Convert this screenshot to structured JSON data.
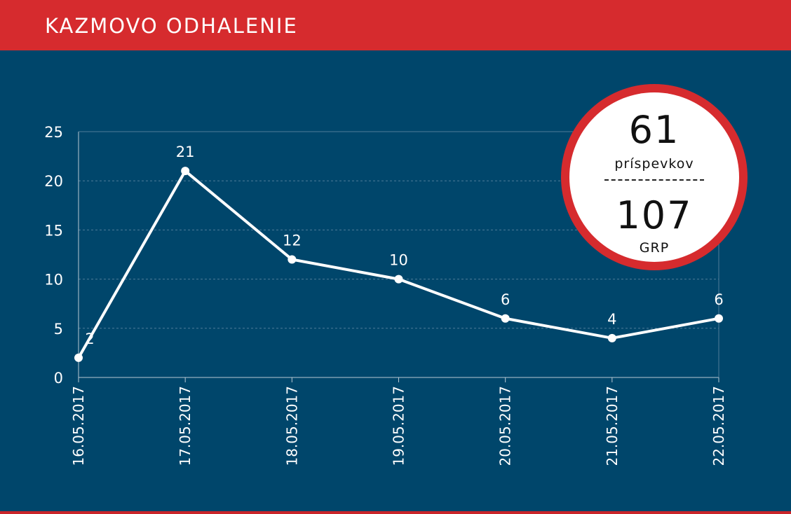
{
  "header": {
    "title": "KAZMOVO ODHALENIE"
  },
  "badge": {
    "posts_value": "61",
    "posts_label": "príspevkov",
    "grp_value": "107",
    "grp_label": "GRP"
  },
  "colors": {
    "header_bg": "#d62b2e",
    "chart_bg": "#00466b",
    "line": "#ffffff",
    "badge_ring": "#d62b2e"
  },
  "chart_data": {
    "type": "line",
    "categories": [
      "16.05.2017",
      "17.05.2017",
      "18.05.2017",
      "19.05.2017",
      "20.05.2017",
      "21.05.2017",
      "22.05.2017"
    ],
    "series": [
      {
        "values": [
          2,
          21,
          12,
          10,
          6,
          4,
          6
        ]
      }
    ],
    "data_labels": [
      "2",
      "21",
      "12",
      "10",
      "6",
      "4",
      "6"
    ],
    "yticks": [
      0,
      5,
      10,
      15,
      20,
      25
    ],
    "ylim": [
      0,
      25
    ],
    "title": "",
    "xlabel": "",
    "ylabel": "",
    "grid": true,
    "legend": "none"
  }
}
